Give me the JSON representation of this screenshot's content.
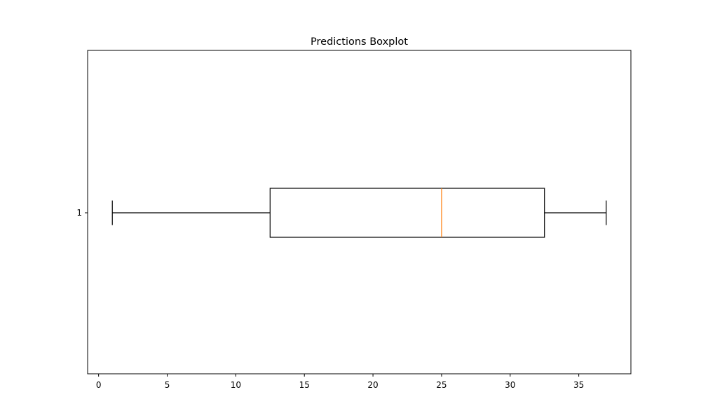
{
  "chart_data": {
    "type": "boxplot",
    "title": "Predictions Boxplot",
    "xlabel": "",
    "ylabel": "",
    "orientation": "horizontal",
    "xlim": [
      -0.8,
      38.8
    ],
    "x_ticks": [
      0,
      5,
      10,
      15,
      20,
      25,
      30,
      35
    ],
    "y_ticks": [
      "1"
    ],
    "grid": false,
    "series": [
      {
        "category": "1",
        "whisker_low": 1,
        "q1": 12.5,
        "median": 25,
        "q3": 32.5,
        "whisker_high": 37
      }
    ],
    "colors": {
      "box": "#000000",
      "whisker": "#000000",
      "median": "#ff7f0e"
    }
  }
}
